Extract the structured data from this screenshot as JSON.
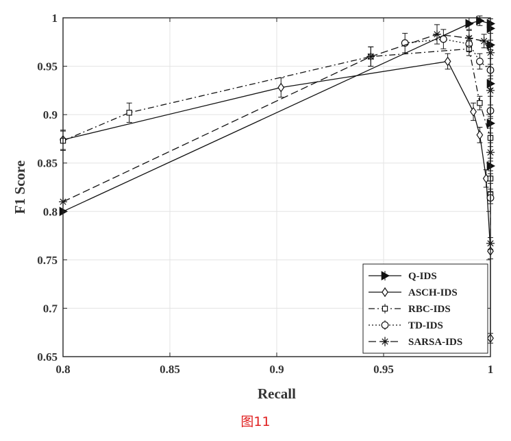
{
  "chart_data": {
    "type": "line",
    "title": "",
    "xlabel": "Recall",
    "ylabel": "F1 Score",
    "xlim": [
      0.8,
      1.0
    ],
    "ylim": [
      0.65,
      1.0
    ],
    "xticks": [
      "0.8",
      "0.85",
      "0.9",
      "0.95",
      "1"
    ],
    "yticks": [
      "0.65",
      "0.7",
      "0.75",
      "0.8",
      "0.85",
      "0.9",
      "0.95",
      "1"
    ],
    "grid": true,
    "legend_position": "bottom-right",
    "series": [
      {
        "name": "Q-IDS",
        "marker": "triangle-right",
        "line_style": "solid",
        "x": [
          0.8,
          0.99,
          0.995,
          1.0,
          1.0,
          1.0,
          1.0,
          1.0,
          1.0
        ],
        "y": [
          0.8,
          0.994,
          0.997,
          0.994,
          0.989,
          0.972,
          0.932,
          0.891,
          0.847
        ],
        "error": [
          0,
          0.006,
          0.005,
          0.005,
          0.005,
          0.005,
          0.005,
          0.005,
          0.005
        ]
      },
      {
        "name": "ASCH-IDS",
        "marker": "diamond",
        "line_style": "solid",
        "x": [
          0.8,
          0.902,
          0.98,
          0.992,
          0.995,
          0.998,
          1.0,
          1.0
        ],
        "y": [
          0.874,
          0.928,
          0.955,
          0.903,
          0.879,
          0.834,
          0.759,
          0.669
        ],
        "error": [
          0.01,
          0.01,
          0.008,
          0.009,
          0.008,
          0.009,
          0.008,
          0.005
        ]
      },
      {
        "name": "RBC-IDS",
        "marker": "square",
        "line_style": "dash-dot",
        "x": [
          0.8,
          0.831,
          0.944,
          0.99,
          0.995,
          1.0,
          1.0,
          1.0
        ],
        "y": [
          0.873,
          0.902,
          0.96,
          0.968,
          0.912,
          0.876,
          0.834,
          0.818
        ],
        "error": [
          0.01,
          0.01,
          0.01,
          0.007,
          0.007,
          0.005,
          0.005,
          0.005
        ]
      },
      {
        "name": "TD-IDS",
        "marker": "circle",
        "line_style": "dotted",
        "x": [
          0.96,
          0.978,
          0.99,
          0.995,
          1.0,
          1.0,
          1.0
        ],
        "y": [
          0.974,
          0.978,
          0.973,
          0.955,
          0.946,
          0.904,
          0.814
        ],
        "error": [
          0.01,
          0.01,
          0.008,
          0.008,
          0.006,
          0.006,
          0.006
        ]
      },
      {
        "name": "SARSA-IDS",
        "marker": "asterisk",
        "line_style": "long-dash",
        "x": [
          0.8,
          0.944,
          0.975,
          0.99,
          0.997,
          1.0,
          1.0,
          1.0,
          1.0
        ],
        "y": [
          0.81,
          0.96,
          0.983,
          0.979,
          0.976,
          0.964,
          0.925,
          0.861,
          0.767
        ],
        "error": [
          0,
          0.01,
          0.01,
          0.008,
          0.007,
          0.006,
          0.006,
          0.006,
          0.006
        ]
      }
    ]
  },
  "caption": "图11"
}
